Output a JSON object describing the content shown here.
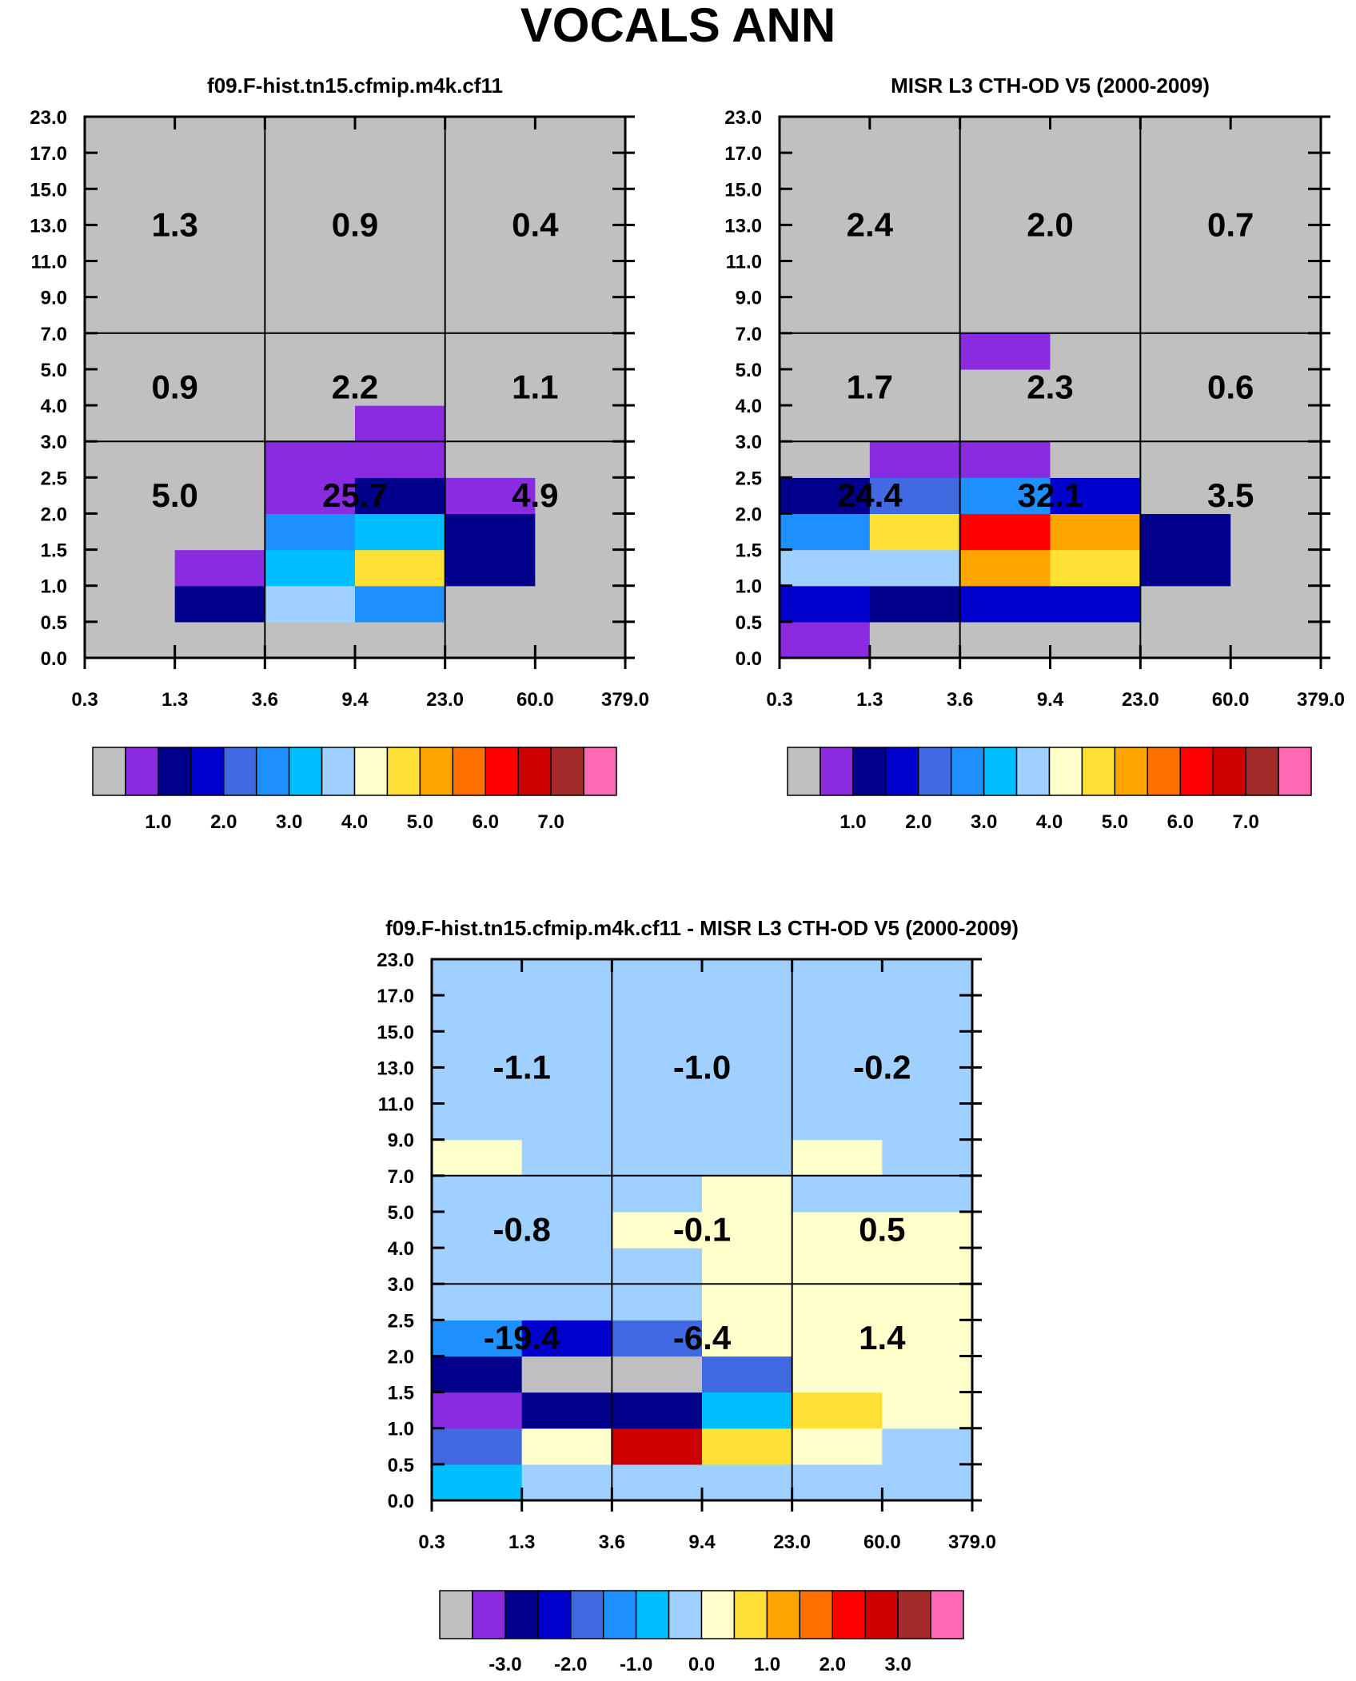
{
  "title": "VOCALS ANN",
  "chart_data": [
    {
      "type": "heatmap",
      "title": "f09.F-hist.tn15.cfmip.m4k.cf11",
      "x_ticks": [
        "0.3",
        "1.3",
        "3.6",
        "9.4",
        "23.0",
        "60.0",
        "379.0"
      ],
      "y_ticks": [
        "0.0",
        "0.5",
        "1.0",
        "1.5",
        "2.0",
        "2.5",
        "3.0",
        "4.0",
        "5.0",
        "7.0",
        "9.0",
        "11.0",
        "13.0",
        "15.0",
        "17.0",
        "23.0"
      ],
      "legend_labels": [
        "1.0",
        "2.0",
        "3.0",
        "4.0",
        "5.0",
        "6.0",
        "7.0"
      ],
      "cells": [
        [
          0,
          0,
          0,
          0,
          0,
          0
        ],
        [
          0,
          2,
          7,
          5,
          0,
          0
        ],
        [
          0,
          1,
          6,
          9,
          2,
          0
        ],
        [
          0,
          0,
          5,
          6,
          2,
          0
        ],
        [
          0,
          0,
          1,
          2,
          1,
          0
        ],
        [
          0,
          0,
          1,
          1,
          0,
          0
        ],
        [
          0,
          0,
          0,
          1,
          0,
          0
        ],
        [
          0,
          0,
          0,
          0,
          0,
          0
        ],
        [
          0,
          0,
          0,
          0,
          0,
          0
        ],
        [
          0,
          0,
          0,
          0,
          0,
          0
        ],
        [
          0,
          0,
          0,
          0,
          0,
          0
        ],
        [
          0,
          0,
          0,
          0,
          0,
          0
        ],
        [
          0,
          0,
          0,
          0,
          0,
          0
        ],
        [
          0,
          0,
          0,
          0,
          0,
          0
        ],
        [
          0,
          0,
          0,
          0,
          0,
          0
        ]
      ],
      "totals": [
        {
          "row": 0,
          "col": 0,
          "value": "5.0"
        },
        {
          "row": 0,
          "col": 1,
          "value": "25.7"
        },
        {
          "row": 0,
          "col": 2,
          "value": "4.9"
        },
        {
          "row": 1,
          "col": 0,
          "value": "0.9"
        },
        {
          "row": 1,
          "col": 1,
          "value": "2.2"
        },
        {
          "row": 1,
          "col": 2,
          "value": "1.1"
        },
        {
          "row": 2,
          "col": 0,
          "value": "1.3"
        },
        {
          "row": 2,
          "col": 1,
          "value": "0.9"
        },
        {
          "row": 2,
          "col": 2,
          "value": "0.4"
        }
      ]
    },
    {
      "type": "heatmap",
      "title": "MISR L3 CTH-OD V5 (2000-2009)",
      "x_ticks": [
        "0.3",
        "1.3",
        "3.6",
        "9.4",
        "23.0",
        "60.0",
        "379.0"
      ],
      "y_ticks": [
        "0.0",
        "0.5",
        "1.0",
        "1.5",
        "2.0",
        "2.5",
        "3.0",
        "4.0",
        "5.0",
        "7.0",
        "9.0",
        "11.0",
        "13.0",
        "15.0",
        "17.0",
        "23.0"
      ],
      "legend_labels": [
        "1.0",
        "2.0",
        "3.0",
        "4.0",
        "5.0",
        "6.0",
        "7.0"
      ],
      "cells": [
        [
          1,
          0,
          0,
          0,
          0,
          0
        ],
        [
          3,
          2,
          3,
          3,
          0,
          0
        ],
        [
          7,
          7,
          10,
          9,
          2,
          0
        ],
        [
          5,
          9,
          12,
          10,
          2,
          0
        ],
        [
          2,
          4,
          5,
          3,
          0,
          0
        ],
        [
          0,
          1,
          1,
          0,
          0,
          0
        ],
        [
          0,
          0,
          0,
          0,
          0,
          0
        ],
        [
          0,
          0,
          0,
          0,
          0,
          0
        ],
        [
          0,
          0,
          1,
          0,
          0,
          0
        ],
        [
          0,
          0,
          0,
          0,
          0,
          0
        ],
        [
          0,
          0,
          0,
          0,
          0,
          0
        ],
        [
          0,
          0,
          0,
          0,
          0,
          0
        ],
        [
          0,
          0,
          0,
          0,
          0,
          0
        ],
        [
          0,
          0,
          0,
          0,
          0,
          0
        ],
        [
          0,
          0,
          0,
          0,
          0,
          0
        ]
      ],
      "totals": [
        {
          "row": 0,
          "col": 0,
          "value": "24.4"
        },
        {
          "row": 0,
          "col": 1,
          "value": "32.1"
        },
        {
          "row": 0,
          "col": 2,
          "value": "3.5"
        },
        {
          "row": 1,
          "col": 0,
          "value": "1.7"
        },
        {
          "row": 1,
          "col": 1,
          "value": "2.3"
        },
        {
          "row": 1,
          "col": 2,
          "value": "0.6"
        },
        {
          "row": 2,
          "col": 0,
          "value": "2.4"
        },
        {
          "row": 2,
          "col": 1,
          "value": "2.0"
        },
        {
          "row": 2,
          "col": 2,
          "value": "0.7"
        }
      ]
    },
    {
      "type": "heatmap",
      "title": "f09.F-hist.tn15.cfmip.m4k.cf11 - MISR L3 CTH-OD V5 (2000-2009)",
      "x_ticks": [
        "0.3",
        "1.3",
        "3.6",
        "9.4",
        "23.0",
        "60.0",
        "379.0"
      ],
      "y_ticks": [
        "0.0",
        "0.5",
        "1.0",
        "1.5",
        "2.0",
        "2.5",
        "3.0",
        "4.0",
        "5.0",
        "7.0",
        "9.0",
        "11.0",
        "13.0",
        "15.0",
        "17.0",
        "23.0"
      ],
      "legend_labels": [
        "-3.0",
        "-2.0",
        "-1.0",
        "0.0",
        "1.0",
        "2.0",
        "3.0"
      ],
      "cells": [
        [
          6,
          7,
          7,
          7,
          7,
          7
        ],
        [
          4,
          8,
          13,
          9,
          8,
          7
        ],
        [
          1,
          2,
          2,
          6,
          9,
          8
        ],
        [
          2,
          0,
          0,
          4,
          8,
          8
        ],
        [
          5,
          3,
          4,
          8,
          8,
          8
        ],
        [
          7,
          7,
          7,
          8,
          8,
          8
        ],
        [
          7,
          7,
          7,
          8,
          8,
          8
        ],
        [
          7,
          7,
          8,
          8,
          8,
          8
        ],
        [
          7,
          7,
          7,
          8,
          7,
          7
        ],
        [
          8,
          7,
          7,
          7,
          8,
          7
        ],
        [
          7,
          7,
          7,
          7,
          7,
          7
        ],
        [
          7,
          7,
          7,
          7,
          7,
          7
        ],
        [
          7,
          7,
          7,
          7,
          7,
          7
        ],
        [
          7,
          7,
          7,
          7,
          7,
          7
        ],
        [
          7,
          7,
          7,
          7,
          7,
          7
        ]
      ],
      "totals": [
        {
          "row": 0,
          "col": 0,
          "value": "-19.4"
        },
        {
          "row": 0,
          "col": 1,
          "value": "-6.4"
        },
        {
          "row": 0,
          "col": 2,
          "value": "1.4"
        },
        {
          "row": 1,
          "col": 0,
          "value": "-0.8"
        },
        {
          "row": 1,
          "col": 1,
          "value": "-0.1"
        },
        {
          "row": 1,
          "col": 2,
          "value": "0.5"
        },
        {
          "row": 2,
          "col": 0,
          "value": "-1.1"
        },
        {
          "row": 2,
          "col": 1,
          "value": "-1.0"
        },
        {
          "row": 2,
          "col": 2,
          "value": "-0.2"
        }
      ]
    }
  ],
  "palette": [
    "#c0c0c0",
    "#8a2be2",
    "#00008b",
    "#0000cd",
    "#4169e1",
    "#1e90ff",
    "#00bfff",
    "#a0d0ff",
    "#ffffcc",
    "#ffe135",
    "#ffa500",
    "#ff7000",
    "#ff0000",
    "#cc0000",
    "#a52a2a",
    "#ff69b4"
  ],
  "xlabel": "",
  "ylabel": ""
}
